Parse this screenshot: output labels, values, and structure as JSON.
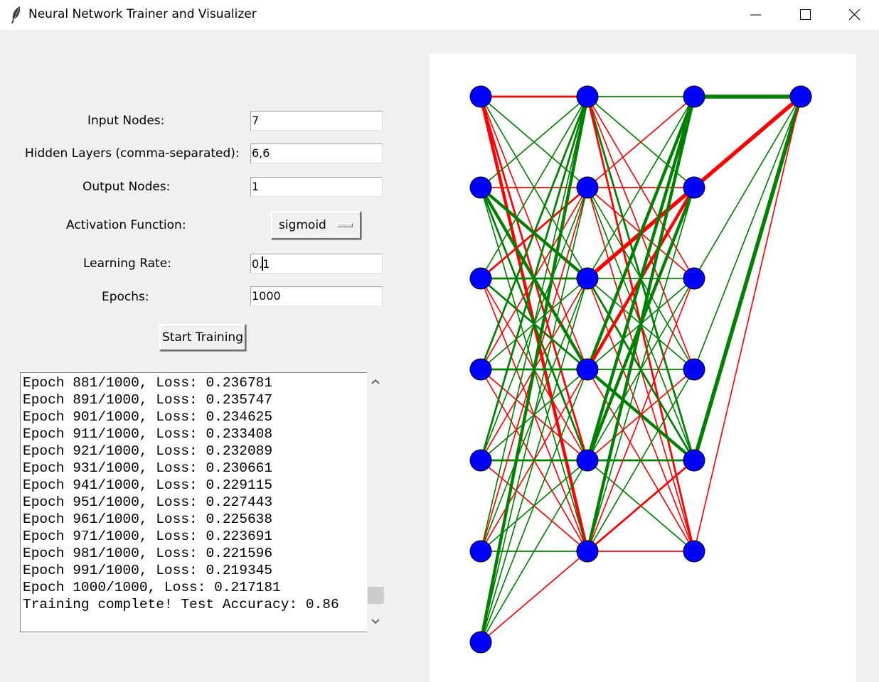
{
  "window": {
    "title": "Neural Network Trainer and Visualizer",
    "icon": "feather-icon",
    "controls": [
      "minimize-icon",
      "maximize-icon",
      "close-icon"
    ]
  },
  "form": {
    "input_nodes_label": "Input Nodes:",
    "input_nodes_value": "7",
    "hidden_layers_label": "Hidden Layers (comma-separated):",
    "hidden_layers_value": "6,6",
    "output_nodes_label": "Output Nodes:",
    "output_nodes_value": "1",
    "activation_label": "Activation Function:",
    "activation_value": "sigmoid",
    "learning_rate_label": "Learning Rate:",
    "learning_rate_before_caret": "0.",
    "learning_rate_after_caret": "1",
    "epochs_label": "Epochs:",
    "epochs_value": "1000",
    "start_button": "Start Training"
  },
  "log": {
    "lines": [
      "Epoch 881/1000, Loss: 0.236781",
      "Epoch 891/1000, Loss: 0.235747",
      "Epoch 901/1000, Loss: 0.234625",
      "Epoch 911/1000, Loss: 0.233408",
      "Epoch 921/1000, Loss: 0.232089",
      "Epoch 931/1000, Loss: 0.230661",
      "Epoch 941/1000, Loss: 0.229115",
      "Epoch 951/1000, Loss: 0.227443",
      "Epoch 961/1000, Loss: 0.225638",
      "Epoch 971/1000, Loss: 0.223691",
      "Epoch 981/1000, Loss: 0.221596",
      "Epoch 991/1000, Loss: 0.219345",
      "Epoch 1000/1000, Loss: 0.217181",
      "Training complete! Test Accuracy: 0.86"
    ],
    "scroll_position": 0.95
  },
  "network": {
    "layers": [
      7,
      6,
      6,
      1
    ],
    "node_color": "#0000ff",
    "positive_color": "#008000",
    "negative_color": "#ff0000",
    "edges": [
      [
        0,
        0,
        0,
        -0.5
      ],
      [
        0,
        0,
        1,
        0.3
      ],
      [
        0,
        0,
        2,
        0.3
      ],
      [
        0,
        0,
        3,
        -0.3
      ],
      [
        0,
        0,
        4,
        -0.5
      ],
      [
        0,
        0,
        5,
        -0.8
      ],
      [
        0,
        1,
        0,
        0.3
      ],
      [
        0,
        1,
        1,
        -0.3
      ],
      [
        0,
        1,
        2,
        0.8
      ],
      [
        0,
        1,
        3,
        0.8
      ],
      [
        0,
        1,
        4,
        0.5
      ],
      [
        0,
        1,
        5,
        0.3
      ],
      [
        0,
        2,
        0,
        0.3
      ],
      [
        0,
        2,
        1,
        -0.5
      ],
      [
        0,
        2,
        2,
        0.5
      ],
      [
        0,
        2,
        3,
        0.5
      ],
      [
        0,
        2,
        4,
        -0.3
      ],
      [
        0,
        2,
        5,
        -0.3
      ],
      [
        0,
        3,
        0,
        0.5
      ],
      [
        0,
        3,
        1,
        -0.3
      ],
      [
        0,
        3,
        2,
        0.3
      ],
      [
        0,
        3,
        3,
        0.5
      ],
      [
        0,
        3,
        4,
        -0.3
      ],
      [
        0,
        3,
        5,
        -0.3
      ],
      [
        0,
        4,
        0,
        0.5
      ],
      [
        0,
        4,
        1,
        0.3
      ],
      [
        0,
        4,
        2,
        -0.3
      ],
      [
        0,
        4,
        3,
        0.3
      ],
      [
        0,
        4,
        4,
        0.5
      ],
      [
        0,
        4,
        5,
        -0.3
      ],
      [
        0,
        5,
        0,
        0.3
      ],
      [
        0,
        5,
        1,
        -0.3
      ],
      [
        0,
        5,
        2,
        0.3
      ],
      [
        0,
        5,
        3,
        -0.3
      ],
      [
        0,
        5,
        4,
        0.3
      ],
      [
        0,
        5,
        5,
        0.3
      ],
      [
        0,
        6,
        0,
        0.8
      ],
      [
        0,
        6,
        1,
        0.3
      ],
      [
        0,
        6,
        2,
        0.3
      ],
      [
        0,
        6,
        3,
        0.3
      ],
      [
        0,
        6,
        4,
        0.3
      ],
      [
        0,
        6,
        5,
        -0.3
      ],
      [
        1,
        0,
        0,
        0.3
      ],
      [
        1,
        0,
        1,
        0.3
      ],
      [
        1,
        0,
        2,
        -0.3
      ],
      [
        1,
        0,
        3,
        -0.3
      ],
      [
        1,
        0,
        4,
        0.5
      ],
      [
        1,
        0,
        5,
        -0.5
      ],
      [
        1,
        1,
        0,
        -0.3
      ],
      [
        1,
        1,
        1,
        -0.3
      ],
      [
        1,
        1,
        2,
        -0.3
      ],
      [
        1,
        1,
        3,
        0.3
      ],
      [
        1,
        1,
        4,
        0.3
      ],
      [
        1,
        1,
        5,
        -0.3
      ],
      [
        1,
        2,
        0,
        0.3
      ],
      [
        1,
        2,
        1,
        -1.0
      ],
      [
        1,
        2,
        2,
        0.3
      ],
      [
        1,
        2,
        3,
        0.3
      ],
      [
        1,
        2,
        4,
        0.5
      ],
      [
        1,
        2,
        5,
        -0.3
      ],
      [
        1,
        3,
        0,
        0.8
      ],
      [
        1,
        3,
        1,
        -0.8
      ],
      [
        1,
        3,
        2,
        0.3
      ],
      [
        1,
        3,
        3,
        0.3
      ],
      [
        1,
        3,
        4,
        0.8
      ],
      [
        1,
        3,
        5,
        -0.3
      ],
      [
        1,
        4,
        0,
        0.8
      ],
      [
        1,
        4,
        1,
        0.8
      ],
      [
        1,
        4,
        2,
        0.3
      ],
      [
        1,
        4,
        3,
        -0.3
      ],
      [
        1,
        4,
        4,
        0.5
      ],
      [
        1,
        4,
        5,
        0.3
      ],
      [
        1,
        5,
        0,
        0.8
      ],
      [
        1,
        5,
        1,
        0.3
      ],
      [
        1,
        5,
        2,
        -0.3
      ],
      [
        1,
        5,
        3,
        0.3
      ],
      [
        1,
        5,
        4,
        -0.5
      ],
      [
        1,
        5,
        5,
        -0.3
      ],
      [
        2,
        0,
        0,
        1.0
      ],
      [
        2,
        1,
        0,
        -1.0
      ],
      [
        2,
        2,
        0,
        0.3
      ],
      [
        2,
        3,
        0,
        0.3
      ],
      [
        2,
        4,
        0,
        1.0
      ],
      [
        2,
        5,
        0,
        -0.3
      ]
    ]
  }
}
